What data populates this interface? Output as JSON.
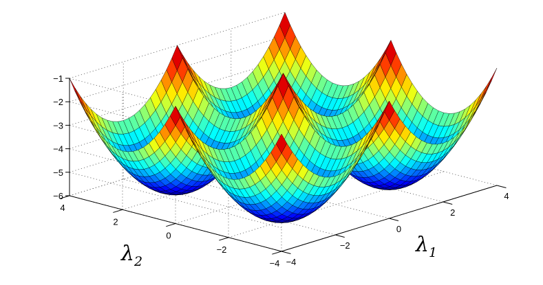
{
  "chart_data": {
    "type": "surface",
    "x": {
      "label": "λ",
      "label_subscript": "1",
      "range": [
        -4,
        4
      ],
      "ticks": [
        -4,
        -2,
        0,
        2,
        4
      ],
      "tick_labels": [
        "−4",
        "−2",
        "0",
        "2",
        "4"
      ]
    },
    "y": {
      "label": "λ",
      "label_subscript": "2",
      "range": [
        -4,
        4
      ],
      "ticks": [
        -4,
        -2,
        0,
        2,
        4
      ],
      "tick_labels": [
        "−4",
        "−2",
        "0",
        "2",
        "4"
      ]
    },
    "z": {
      "label": "",
      "range": [
        -6,
        -1
      ],
      "ticks": [
        -6,
        -5,
        -4,
        -3,
        -2,
        -1
      ],
      "tick_labels": [
        "−6",
        "−5",
        "−4",
        "−3",
        "−2",
        "−1"
      ]
    },
    "grid": true,
    "colormap": "jet",
    "surface": {
      "description_of_shape": "four parabolic wells with minima near z = -6 at (λ1, λ2) = (±2, ±2), separated by ridges; surface reaches about -1 at the domain corners",
      "wells": [
        {
          "x": -2,
          "y": -2,
          "z_min": -6
        },
        {
          "x": 2,
          "y": -2,
          "z_min": -6
        },
        {
          "x": -2,
          "y": 2,
          "z_min": -6
        },
        {
          "x": 2,
          "y": 2,
          "z_min": -6
        }
      ],
      "max_z": -1
    }
  }
}
